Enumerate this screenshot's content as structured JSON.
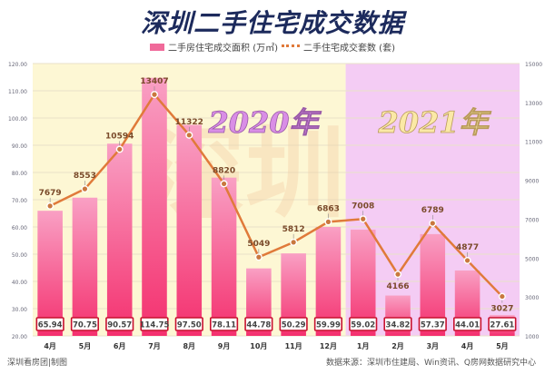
{
  "title": "深圳二手住宅成交数据",
  "legend": {
    "bar_label": "二手房住宅成交面积 (万㎡)",
    "line_label": "二手住宅成交套数 (套)"
  },
  "overlay": {
    "year_2020": "2020年",
    "year_2021": "2021年",
    "watermark": "深圳"
  },
  "footer": {
    "credit": "深圳看房团|制图",
    "source": "数据来源：深圳市住建局、Win资讯、Q房网数据研究中心"
  },
  "colors": {
    "bar": "#f4609a",
    "bar_light": "#f9a0c4",
    "line": "#e07a3a",
    "bg_2020": "#fdf7d4",
    "bg_2021": "#f4ccf4",
    "title": "#1c2a5c",
    "value_box": "#c8102e"
  },
  "chart_data": {
    "type": "bar",
    "title": "深圳二手住宅成交数据",
    "categories": [
      "4月",
      "5月",
      "6月",
      "7月",
      "8月",
      "9月",
      "10月",
      "11月",
      "12月",
      "1月",
      "2月",
      "3月",
      "4月",
      "5月"
    ],
    "series": [
      {
        "name": "二手房住宅成交面积 (万㎡)",
        "type": "bar",
        "axis": "left",
        "values": [
          65.94,
          70.75,
          90.57,
          114.75,
          97.5,
          78.11,
          44.78,
          50.29,
          59.99,
          59.02,
          34.82,
          57.37,
          44.01,
          27.61
        ]
      },
      {
        "name": "二手住宅成交套数 (套)",
        "type": "line",
        "axis": "right",
        "values": [
          7679,
          8553,
          10594,
          13407,
          11322,
          8820,
          5049,
          5812,
          6863,
          7008,
          4166,
          6789,
          4877,
          3027
        ]
      }
    ],
    "left_axis": {
      "ylim": [
        20,
        120
      ],
      "ticks": [
        "20.00",
        "30.00",
        "40.00",
        "50.00",
        "60.00",
        "70.00",
        "80.00",
        "90.00",
        "100.00",
        "110.00",
        "120.00"
      ]
    },
    "right_axis": {
      "ylim": [
        1000,
        15000
      ],
      "ticks": [
        "1000",
        "3000",
        "5000",
        "7000",
        "9000",
        "11000",
        "13000",
        "15000"
      ]
    },
    "periods": [
      {
        "label": "2020年",
        "from": "4月",
        "to": "12月"
      },
      {
        "label": "2021年",
        "from": "1月",
        "to": "5月"
      }
    ],
    "grid": true,
    "legend_position": "top"
  }
}
